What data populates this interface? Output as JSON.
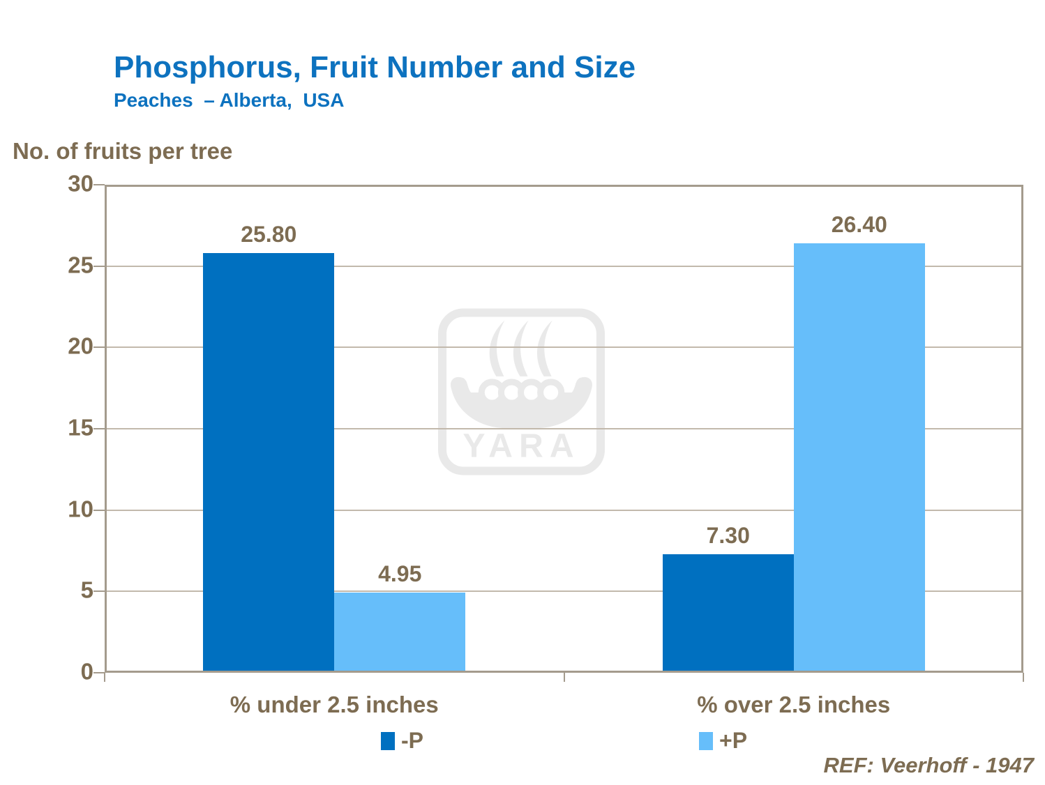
{
  "header": {
    "title": "Phosphorus, Fruit Number and Size",
    "subtitle": "Peaches  – Alberta,  USA"
  },
  "chart_data": {
    "type": "bar",
    "title": "Phosphorus, Fruit Number and Size",
    "subtitle": "Peaches – Alberta, USA",
    "ylabel": "No. of fruits per tree",
    "categories": [
      "% under 2.5 inches",
      "% over 2.5 inches"
    ],
    "series": [
      {
        "name": "-P",
        "color": "#0070c0",
        "values": [
          25.8,
          7.3
        ],
        "labels": [
          "25.80",
          "7.30"
        ]
      },
      {
        "name": "+P",
        "color": "#66befa",
        "values": [
          4.95,
          26.4
        ],
        "labels": [
          "4.95",
          "26.40"
        ]
      }
    ],
    "ylim": [
      0,
      30
    ],
    "yticks": [
      0,
      5,
      10,
      15,
      20,
      25,
      30
    ],
    "grid": true,
    "legend_position": "bottom"
  },
  "axis": {
    "title": "No. of fruits per tree"
  },
  "legend": {
    "items": [
      {
        "label": "-P",
        "color": "#0070c0"
      },
      {
        "label": "+P",
        "color": "#66befa"
      }
    ]
  },
  "watermark": {
    "text": "YARA"
  },
  "footer": {
    "ref": "REF: Veerhoff - 1947"
  },
  "colors": {
    "title_blue": "#0d72bf",
    "text_brown": "#7d6c52",
    "axis_line": "#a49b8d",
    "gridline": "#c2b9ac",
    "series_dark": "#0070c0",
    "series_light": "#66befa",
    "watermark_gray": "#e9e9e9"
  }
}
